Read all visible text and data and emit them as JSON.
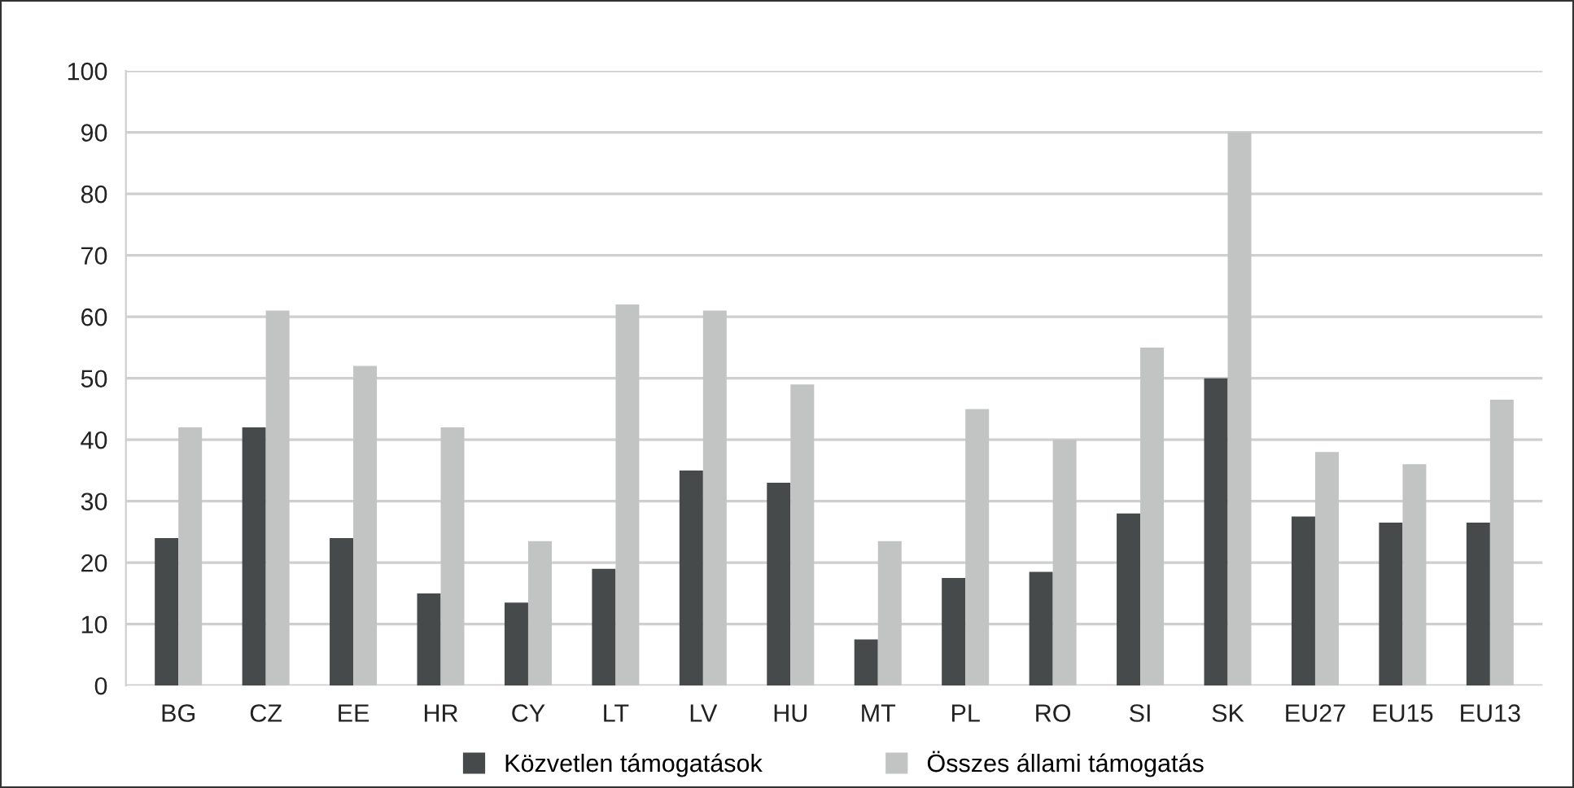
{
  "chart_data": {
    "type": "bar",
    "categories": [
      "BG",
      "CZ",
      "EE",
      "HR",
      "CY",
      "LT",
      "LV",
      "HU",
      "MT",
      "PL",
      "RO",
      "SI",
      "SK",
      "EU27",
      "EU15",
      "EU13"
    ],
    "series": [
      {
        "name": "Közvetlen támogatások",
        "color": "#464a4b",
        "values": [
          24,
          42,
          24,
          15,
          13.5,
          19,
          35,
          33,
          7.5,
          17.5,
          18.5,
          28,
          50,
          27.5,
          26.5,
          26.5
        ]
      },
      {
        "name": "Összes állami támogatás",
        "color": "#c2c4c3",
        "values": [
          42,
          61,
          52,
          42,
          23.5,
          62,
          61,
          49,
          23.5,
          45,
          40,
          55,
          90,
          38,
          36,
          46.5
        ]
      }
    ],
    "ylim": [
      0,
      100
    ],
    "yticks": [
      0,
      10,
      20,
      30,
      40,
      50,
      60,
      70,
      80,
      90,
      100
    ],
    "grid": "y",
    "legend": "bottom"
  }
}
